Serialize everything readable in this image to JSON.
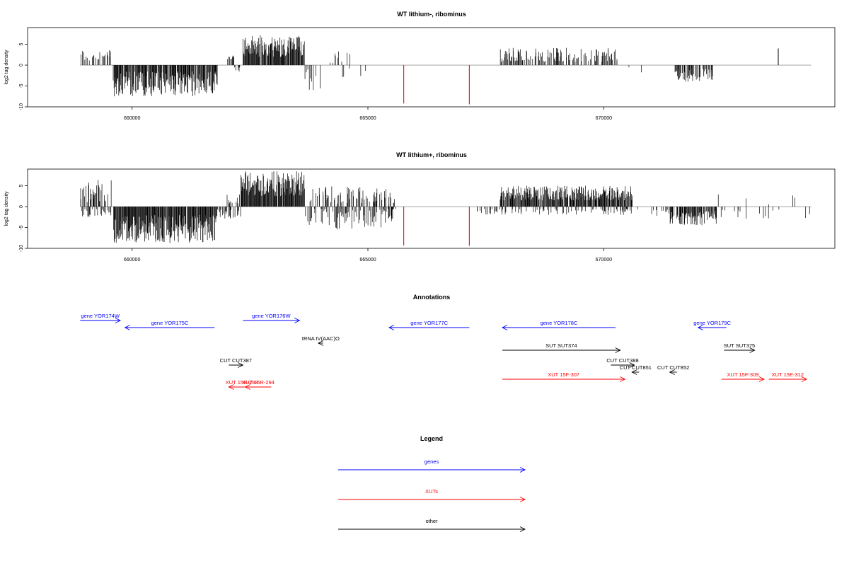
{
  "colors": {
    "genes": "#0000ff",
    "xuts": "#ff0000",
    "other": "#000000",
    "baseline": "#9a9a9a",
    "special": "#cc0000"
  },
  "chart_data": [
    {
      "type": "bar",
      "title": "WT lithium-, ribominus",
      "ylabel": "log2 tag density",
      "xlim": [
        658100,
        674600
      ],
      "ylim": [
        -10,
        9
      ],
      "xticks": [
        660000,
        665000,
        670000
      ],
      "xtick_labels": [
        "660000",
        "665000",
        "670000"
      ],
      "yticks": [
        -10,
        -5,
        0,
        5
      ],
      "ytick_labels": [
        "-10",
        "-5",
        "0",
        "5"
      ],
      "grid": false,
      "segments": [
        {
          "from": 658900,
          "to": 659550,
          "min": 0.8,
          "max": 3.8,
          "sign": 1,
          "density": 0.35
        },
        {
          "from": 659600,
          "to": 661800,
          "min": 1.5,
          "max": 7.5,
          "sign": -1,
          "density": 0.9
        },
        {
          "from": 662000,
          "to": 662150,
          "min": 1.0,
          "max": 3.0,
          "sign": 1,
          "density": 0.3
        },
        {
          "from": 662150,
          "to": 662300,
          "min": 0.5,
          "max": 2.0,
          "sign": -1,
          "density": 0.3
        },
        {
          "from": 662350,
          "to": 663650,
          "min": 2.0,
          "max": 7.2,
          "sign": 1,
          "density": 0.95
        },
        {
          "from": 663650,
          "to": 664000,
          "min": 0.5,
          "max": 6.5,
          "sign": -1,
          "density": 0.2
        },
        {
          "from": 664100,
          "to": 665000,
          "min": 0.5,
          "max": 3.5,
          "sign": 1,
          "density": 0.05
        },
        {
          "from": 664100,
          "to": 665300,
          "min": 0.5,
          "max": 4.0,
          "sign": -1,
          "density": 0.05
        },
        {
          "from": 667800,
          "to": 670300,
          "min": 0.8,
          "max": 4.2,
          "sign": 1,
          "density": 0.45
        },
        {
          "from": 670400,
          "to": 670800,
          "min": 0.3,
          "max": 2.8,
          "sign": -1,
          "density": 0.08
        },
        {
          "from": 671500,
          "to": 672300,
          "min": 1.0,
          "max": 4.0,
          "sign": -1,
          "density": 0.6
        }
      ],
      "spikes": [
        {
          "x": 665760,
          "y": -9.2
        },
        {
          "x": 667150,
          "y": -9.4
        },
        {
          "x": 673700,
          "y": 4.0
        }
      ]
    },
    {
      "type": "bar",
      "title": "WT lithium+, ribominus",
      "ylabel": "log2 tag density",
      "xlim": [
        658100,
        674600
      ],
      "ylim": [
        -10,
        9
      ],
      "xticks": [
        660000,
        665000,
        670000
      ],
      "xtick_labels": [
        "660000",
        "665000",
        "670000"
      ],
      "yticks": [
        -10,
        -5,
        0,
        5
      ],
      "ytick_labels": [
        "-10",
        "-5",
        "0",
        "5"
      ],
      "grid": false,
      "segments": [
        {
          "from": 658900,
          "to": 659550,
          "min": 1.0,
          "max": 6.5,
          "sign": 1,
          "density": 0.6
        },
        {
          "from": 658900,
          "to": 659550,
          "min": 0.5,
          "max": 2.5,
          "sign": -1,
          "density": 0.3
        },
        {
          "from": 659600,
          "to": 661800,
          "min": 2.0,
          "max": 8.7,
          "sign": -1,
          "density": 0.97
        },
        {
          "from": 661800,
          "to": 662300,
          "min": 0.5,
          "max": 3.0,
          "sign": -1,
          "density": 0.3
        },
        {
          "from": 662000,
          "to": 662300,
          "min": 0.5,
          "max": 3.0,
          "sign": 1,
          "density": 0.3
        },
        {
          "from": 662300,
          "to": 663650,
          "min": 2.5,
          "max": 8.5,
          "sign": 1,
          "density": 0.98
        },
        {
          "from": 663650,
          "to": 665600,
          "min": 0.5,
          "max": 5.0,
          "sign": 1,
          "density": 0.35
        },
        {
          "from": 663650,
          "to": 665600,
          "min": 0.5,
          "max": 5.5,
          "sign": -1,
          "density": 0.4
        },
        {
          "from": 667300,
          "to": 667800,
          "min": 0.5,
          "max": 2.0,
          "sign": -1,
          "density": 0.3
        },
        {
          "from": 667800,
          "to": 670600,
          "min": 1.5,
          "max": 5.0,
          "sign": 1,
          "density": 0.85
        },
        {
          "from": 667800,
          "to": 670600,
          "min": 0.5,
          "max": 2.0,
          "sign": -1,
          "density": 0.2
        },
        {
          "from": 670600,
          "to": 671400,
          "min": 0.5,
          "max": 2.5,
          "sign": -1,
          "density": 0.12
        },
        {
          "from": 671400,
          "to": 672400,
          "min": 1.0,
          "max": 4.5,
          "sign": -1,
          "density": 0.85
        },
        {
          "from": 672400,
          "to": 674400,
          "min": 0.5,
          "max": 3.0,
          "sign": -1,
          "density": 0.06
        },
        {
          "from": 672400,
          "to": 674400,
          "min": 0.5,
          "max": 3.0,
          "sign": 1,
          "density": 0.04
        }
      ],
      "spikes": [
        {
          "x": 665760,
          "y": -9.3
        },
        {
          "x": 667150,
          "y": -9.4
        }
      ]
    }
  ],
  "annotations": {
    "title": "Annotations",
    "xlim": [
      658100,
      674600
    ],
    "features": [
      {
        "label": "gene YOR174W",
        "start": 658900,
        "end": 659750,
        "strand": "+",
        "row": 0,
        "class": "genes"
      },
      {
        "label": "gene YOR175C",
        "start": 659850,
        "end": 661750,
        "strand": "-",
        "row": 1,
        "class": "genes"
      },
      {
        "label": "gene YOR176W",
        "start": 662350,
        "end": 663550,
        "strand": "+",
        "row": 0,
        "class": "genes"
      },
      {
        "label": "gene YOR177C",
        "start": 665450,
        "end": 667150,
        "strand": "-",
        "row": 1,
        "class": "genes"
      },
      {
        "label": "gene YOR178C",
        "start": 667850,
        "end": 670250,
        "strand": "-",
        "row": 1,
        "class": "genes"
      },
      {
        "label": "gene YOR179C",
        "start": 672000,
        "end": 672600,
        "strand": "-",
        "row": 1,
        "class": "genes"
      },
      {
        "label": "tRNA tV(AAC)O",
        "start": 663950,
        "end": 664050,
        "strand": "-",
        "row": 2,
        "class": "other"
      },
      {
        "label": "SUT SUT374",
        "start": 667850,
        "end": 670350,
        "strand": "+",
        "row": 3,
        "class": "other"
      },
      {
        "label": "SUT SUT375",
        "start": 672550,
        "end": 673200,
        "strand": "+",
        "row": 3,
        "class": "other"
      },
      {
        "label": "CUT CUT387",
        "start": 662050,
        "end": 662350,
        "strand": "+",
        "row": 4,
        "class": "other"
      },
      {
        "label": "CUT CUT388",
        "start": 670150,
        "end": 670650,
        "strand": "+",
        "row": 4,
        "class": "other"
      },
      {
        "label": "CUT CUT851",
        "start": 670600,
        "end": 670750,
        "strand": "-",
        "row": 5,
        "class": "other"
      },
      {
        "label": "CUT CUT852",
        "start": 671400,
        "end": 671550,
        "strand": "-",
        "row": 5,
        "class": "other"
      },
      {
        "label": "XUT 15F-307",
        "start": 667850,
        "end": 670450,
        "strand": "+",
        "row": 6,
        "class": "xuts"
      },
      {
        "label": "XUT 15F-309",
        "start": 672500,
        "end": 673400,
        "strand": "+",
        "row": 6,
        "class": "xuts"
      },
      {
        "label": "XUT 15E-312",
        "start": 673500,
        "end": 674300,
        "strand": "+",
        "row": 6,
        "class": "xuts"
      },
      {
        "label": "XUT 15R-293",
        "start": 662050,
        "end": 662600,
        "strand": "-",
        "row": 7,
        "class": "xuts"
      },
      {
        "label": "XUT 15R-294",
        "start": 662400,
        "end": 662950,
        "strand": "-",
        "row": 7,
        "class": "xuts"
      }
    ]
  },
  "legend": {
    "title": "Legend",
    "items": [
      {
        "label": "genes",
        "class": "genes"
      },
      {
        "label": "XUTs",
        "class": "xuts"
      },
      {
        "label": "other",
        "class": "other"
      }
    ]
  }
}
